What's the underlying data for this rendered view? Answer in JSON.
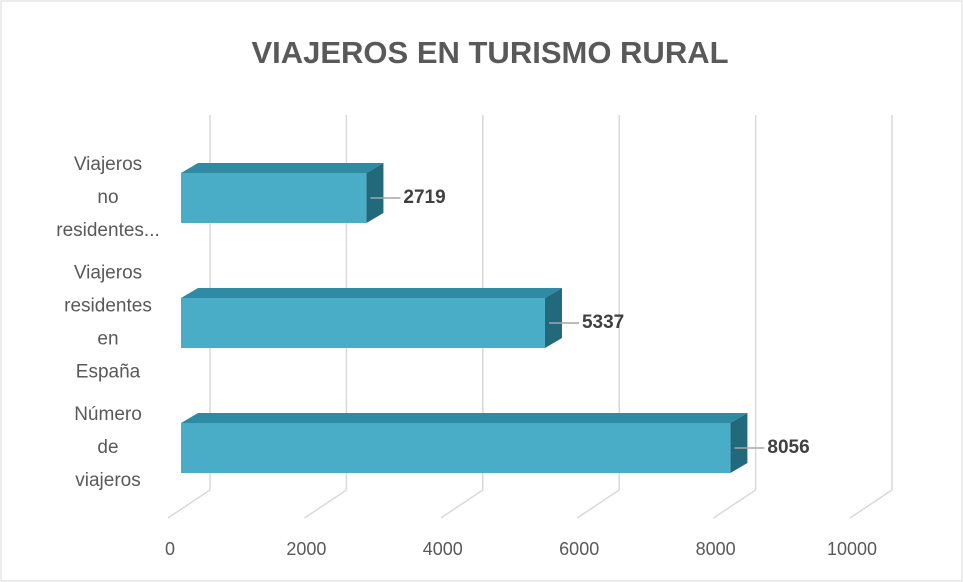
{
  "chart_data": {
    "type": "bar",
    "orientation": "horizontal",
    "three_d": true,
    "title": "VIAJEROS EN TURISMO RURAL",
    "categories": [
      "Número de viajeros",
      "Viajeros residentes en España",
      "Viajeros no residentes..."
    ],
    "values": [
      8056,
      5337,
      2719
    ],
    "color": "#4aadc8",
    "xlim": [
      0,
      10000
    ],
    "xticks": [
      0,
      2000,
      4000,
      6000,
      8000,
      10000
    ],
    "grid": true
  }
}
